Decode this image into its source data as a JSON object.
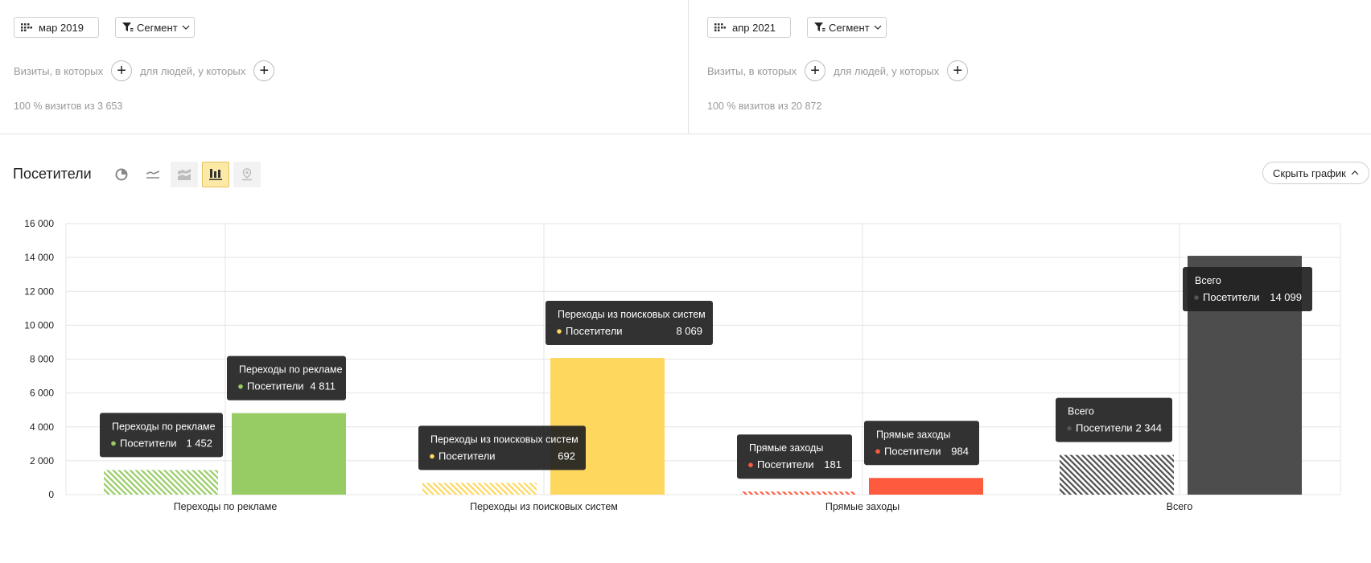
{
  "segments": [
    {
      "date_label": "мар 2019",
      "segment_label": "Сегмент",
      "visits_label": "Визиты, в которых",
      "people_label": "для людей, у которых",
      "stat_text": "100 % визитов из 3 653"
    },
    {
      "date_label": "апр 2021",
      "segment_label": "Сегмент",
      "visits_label": "Визиты, в которых",
      "people_label": "для людей, у которых",
      "stat_text": "100 % визитов из 20 872"
    }
  ],
  "report": {
    "title": "Посетители",
    "hide_chart_label": "Скрыть график",
    "chart_types": [
      "pie-chart-icon",
      "line-chart-icon",
      "stacked-area-icon",
      "bar-chart-icon",
      "map-icon"
    ],
    "active_chart_type": "bar-chart-icon"
  },
  "chart_data": {
    "type": "bar",
    "title": "",
    "xlabel": "",
    "ylabel": "",
    "ylim": [
      0,
      16000
    ],
    "yticks": [
      0,
      2000,
      4000,
      6000,
      8000,
      10000,
      12000,
      14000,
      16000
    ],
    "ytick_labels": [
      "0",
      "2 000",
      "4 000",
      "6 000",
      "8 000",
      "10 000",
      "12 000",
      "14 000",
      "16 000"
    ],
    "grid": true,
    "categories": [
      "Переходы по рекламе",
      "Переходы из поисковых систем",
      "Прямые заходы",
      "Всего"
    ],
    "category_colors": [
      "#97cc64",
      "#fed75f",
      "#fd5a3e",
      "#4d4d4d"
    ],
    "series": [
      {
        "name": "мар 2019",
        "pattern": "hatched",
        "values": [
          1452,
          692,
          181,
          2344
        ]
      },
      {
        "name": "апр 2021",
        "pattern": "solid",
        "values": [
          4811,
          8069,
          984,
          14099
        ]
      }
    ],
    "tooltip_metric": "Посетители",
    "value_labels": [
      [
        "1 452",
        "692",
        "181",
        "2 344"
      ],
      [
        "4 811",
        "8 069",
        "984",
        "14 099"
      ]
    ]
  }
}
